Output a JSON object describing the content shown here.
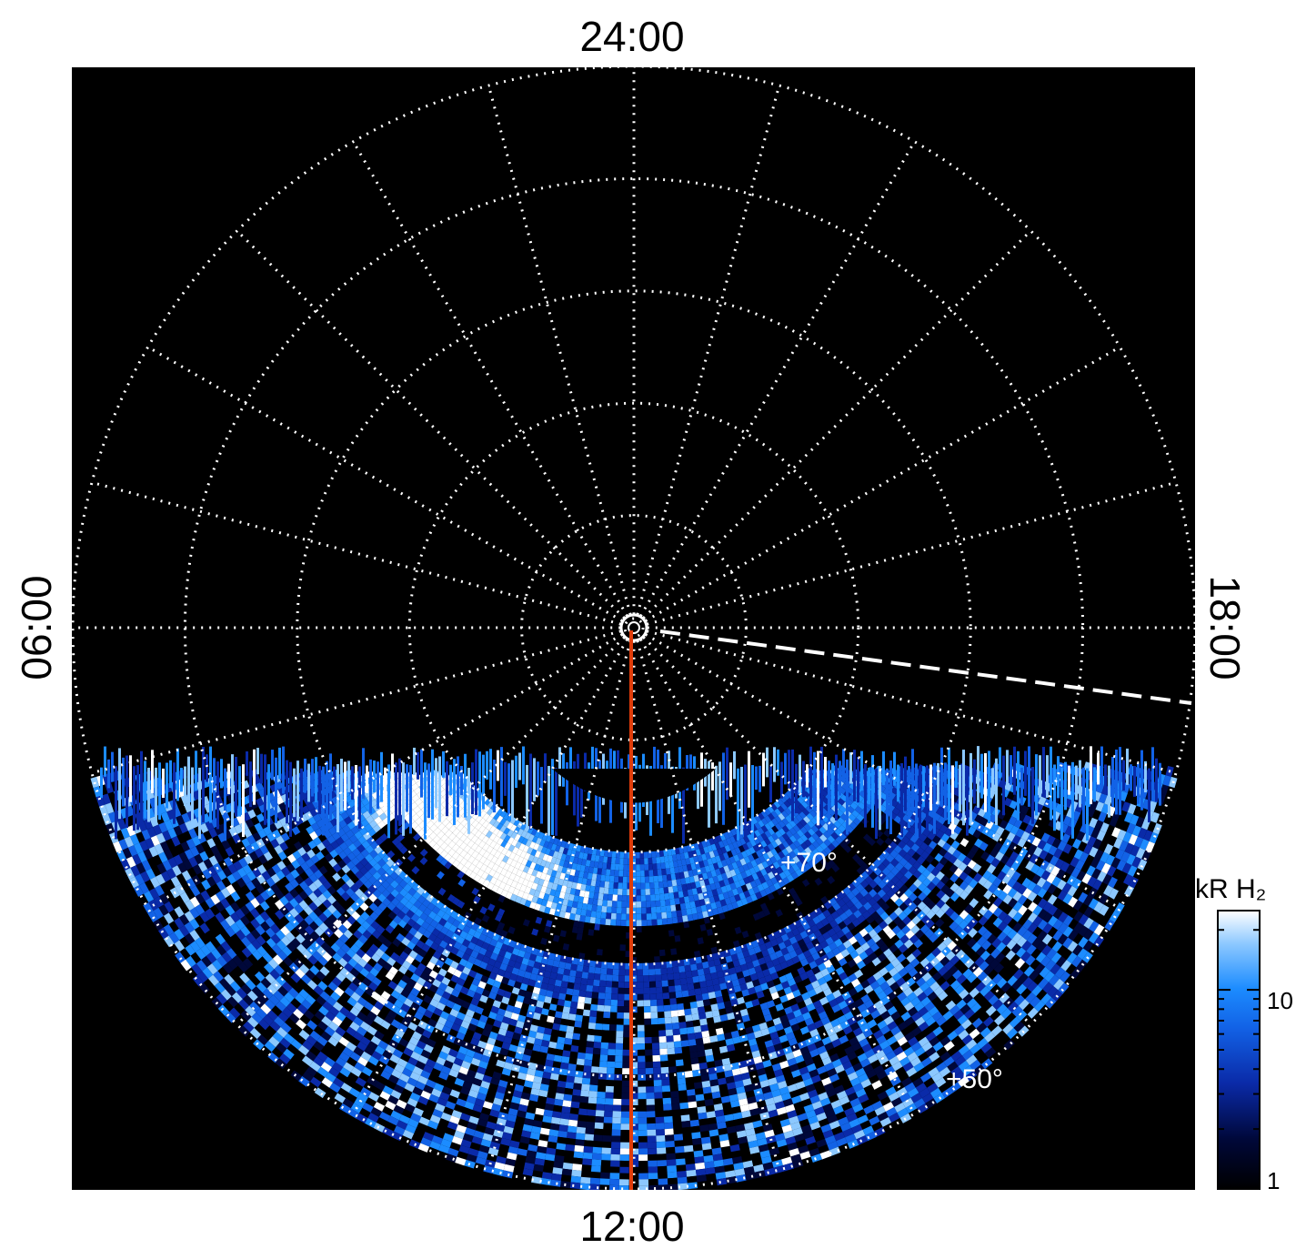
{
  "chart_data": {
    "type": "heatmap",
    "projection": "polar",
    "local_time_labels": {
      "top": "24:00",
      "bottom": "12:00",
      "left": "06:00",
      "right": "18:00"
    },
    "latitude_labels": [
      "+70°",
      "+50°"
    ],
    "latitude_circles_deg": [
      90,
      80,
      70,
      60,
      50,
      40
    ],
    "meridian_spacing_hours": 1,
    "observed_region": "dayside only, lower part of disk",
    "colorbar": {
      "title": "kR H₂",
      "scale": "log",
      "range": [
        1,
        25
      ],
      "ticks": [
        1,
        10
      ],
      "tick_labels": [
        "1",
        "10"
      ],
      "colormap": [
        "#000000",
        "#00083a",
        "#0a2aa8",
        "#1262e6",
        "#1c8cff",
        "#8cc8ff",
        "#ffffff"
      ]
    },
    "overlays": {
      "noon_meridian_line_color": "#e03c0a",
      "dashed_line_color": "#ffffff"
    },
    "features": {
      "bright_arc_colatitude_deg": 15,
      "dark_gap_colatitude_deg": 28,
      "peak_brightness_kR": 25
    }
  }
}
